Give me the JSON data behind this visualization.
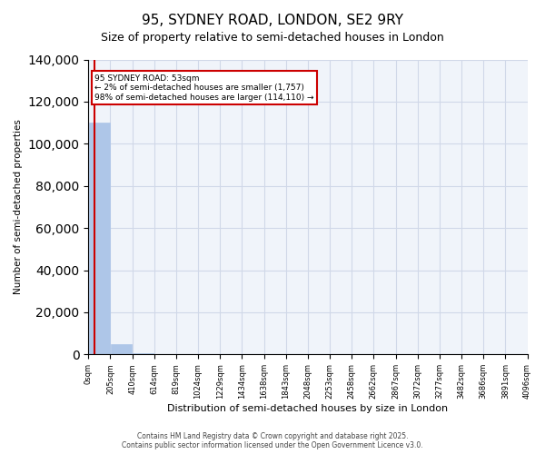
{
  "title": "95, SYDNEY ROAD, LONDON, SE2 9RY",
  "subtitle": "Size of property relative to semi-detached houses in London",
  "xlabel": "Distribution of semi-detached houses by size in London",
  "ylabel": "Number of semi-detached properties",
  "property_size": 53,
  "property_label": "95 SYDNEY ROAD: 53sqm",
  "pct_smaller": 2,
  "pct_larger": 98,
  "count_smaller": 1757,
  "count_larger": 114110,
  "annotation_line1": "95 SYDNEY ROAD: 53sqm",
  "annotation_line2": "← 2% of semi-detached houses are smaller (1,757)",
  "annotation_line3": "98% of semi-detached houses are larger (114,110) →",
  "bin_edges": [
    0,
    205,
    410,
    614,
    819,
    1024,
    1229,
    1434,
    1638,
    1843,
    2048,
    2253,
    2458,
    2662,
    2867,
    3072,
    3277,
    3482,
    3686,
    3891,
    4096
  ],
  "bin_labels": [
    "0sqm",
    "205sqm",
    "410sqm",
    "614sqm",
    "819sqm",
    "1024sqm",
    "1229sqm",
    "1434sqm",
    "1638sqm",
    "1843sqm",
    "2048sqm",
    "2253sqm",
    "2458sqm",
    "2662sqm",
    "2867sqm",
    "3072sqm",
    "3277sqm",
    "3482sqm",
    "3686sqm",
    "3891sqm",
    "4096sqm"
  ],
  "bar_heights": [
    110000,
    5000,
    500,
    200,
    100,
    80,
    60,
    40,
    30,
    20,
    15,
    10,
    8,
    6,
    5,
    4,
    3,
    2,
    1,
    1
  ],
  "bar_color": "#aec6e8",
  "bar_edgecolor": "#aec6e8",
  "red_line_color": "#cc0000",
  "annotation_box_color": "#cc0000",
  "annotation_text_color": "#000000",
  "grid_color": "#d0d8e8",
  "background_color": "#f0f4fa",
  "ylim": [
    0,
    140000
  ],
  "yticks": [
    0,
    20000,
    40000,
    60000,
    80000,
    100000,
    120000,
    140000
  ],
  "footer_line1": "Contains HM Land Registry data © Crown copyright and database right 2025.",
  "footer_line2": "Contains public sector information licensed under the Open Government Licence v3.0."
}
